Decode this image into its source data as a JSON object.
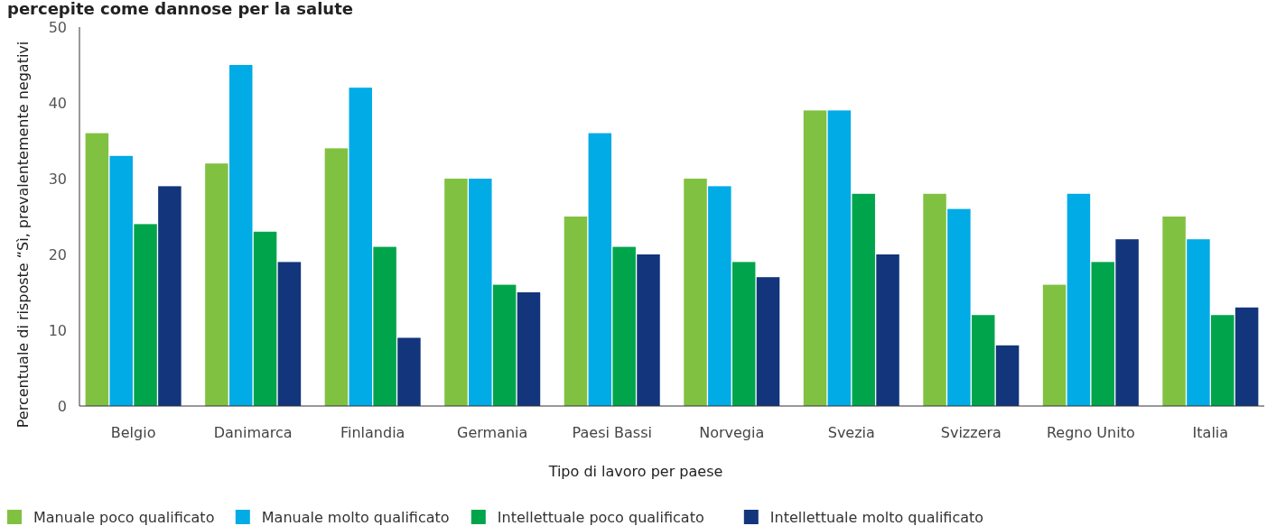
{
  "chart_data": {
    "type": "bar",
    "title": "percepite come dannose per la salute",
    "xlabel": "Tipo di lavoro per paese",
    "ylabel": "Percentuale di risposte “Sì, prevalentemente negativi",
    "categories": [
      "Belgio",
      "Danimarca",
      "Finlandia",
      "Germania",
      "Paesi Bassi",
      "Norvegia",
      "Svezia",
      "Svizzera",
      "Regno Unito",
      "Italia"
    ],
    "series": [
      {
        "name": "Manuale poco qualificato",
        "color": "#80c141",
        "values": [
          36,
          32,
          34,
          30,
          25,
          30,
          39,
          28,
          16,
          25
        ]
      },
      {
        "name": "Manuale molto qualificato",
        "color": "#00abe6",
        "values": [
          33,
          45,
          42,
          30,
          36,
          29,
          39,
          26,
          28,
          22
        ]
      },
      {
        "name": "Intellettuale poco qualificato",
        "color": "#00a54b",
        "values": [
          24,
          23,
          21,
          16,
          21,
          19,
          28,
          12,
          19,
          12
        ]
      },
      {
        "name": "Intellettuale molto qualificato",
        "color": "#12357b",
        "values": [
          29,
          19,
          9,
          15,
          20,
          17,
          20,
          8,
          22,
          13
        ]
      }
    ],
    "ylim": [
      0,
      50
    ],
    "yticks": [
      0,
      10,
      20,
      30,
      40,
      50
    ],
    "legend": "bottom left"
  }
}
